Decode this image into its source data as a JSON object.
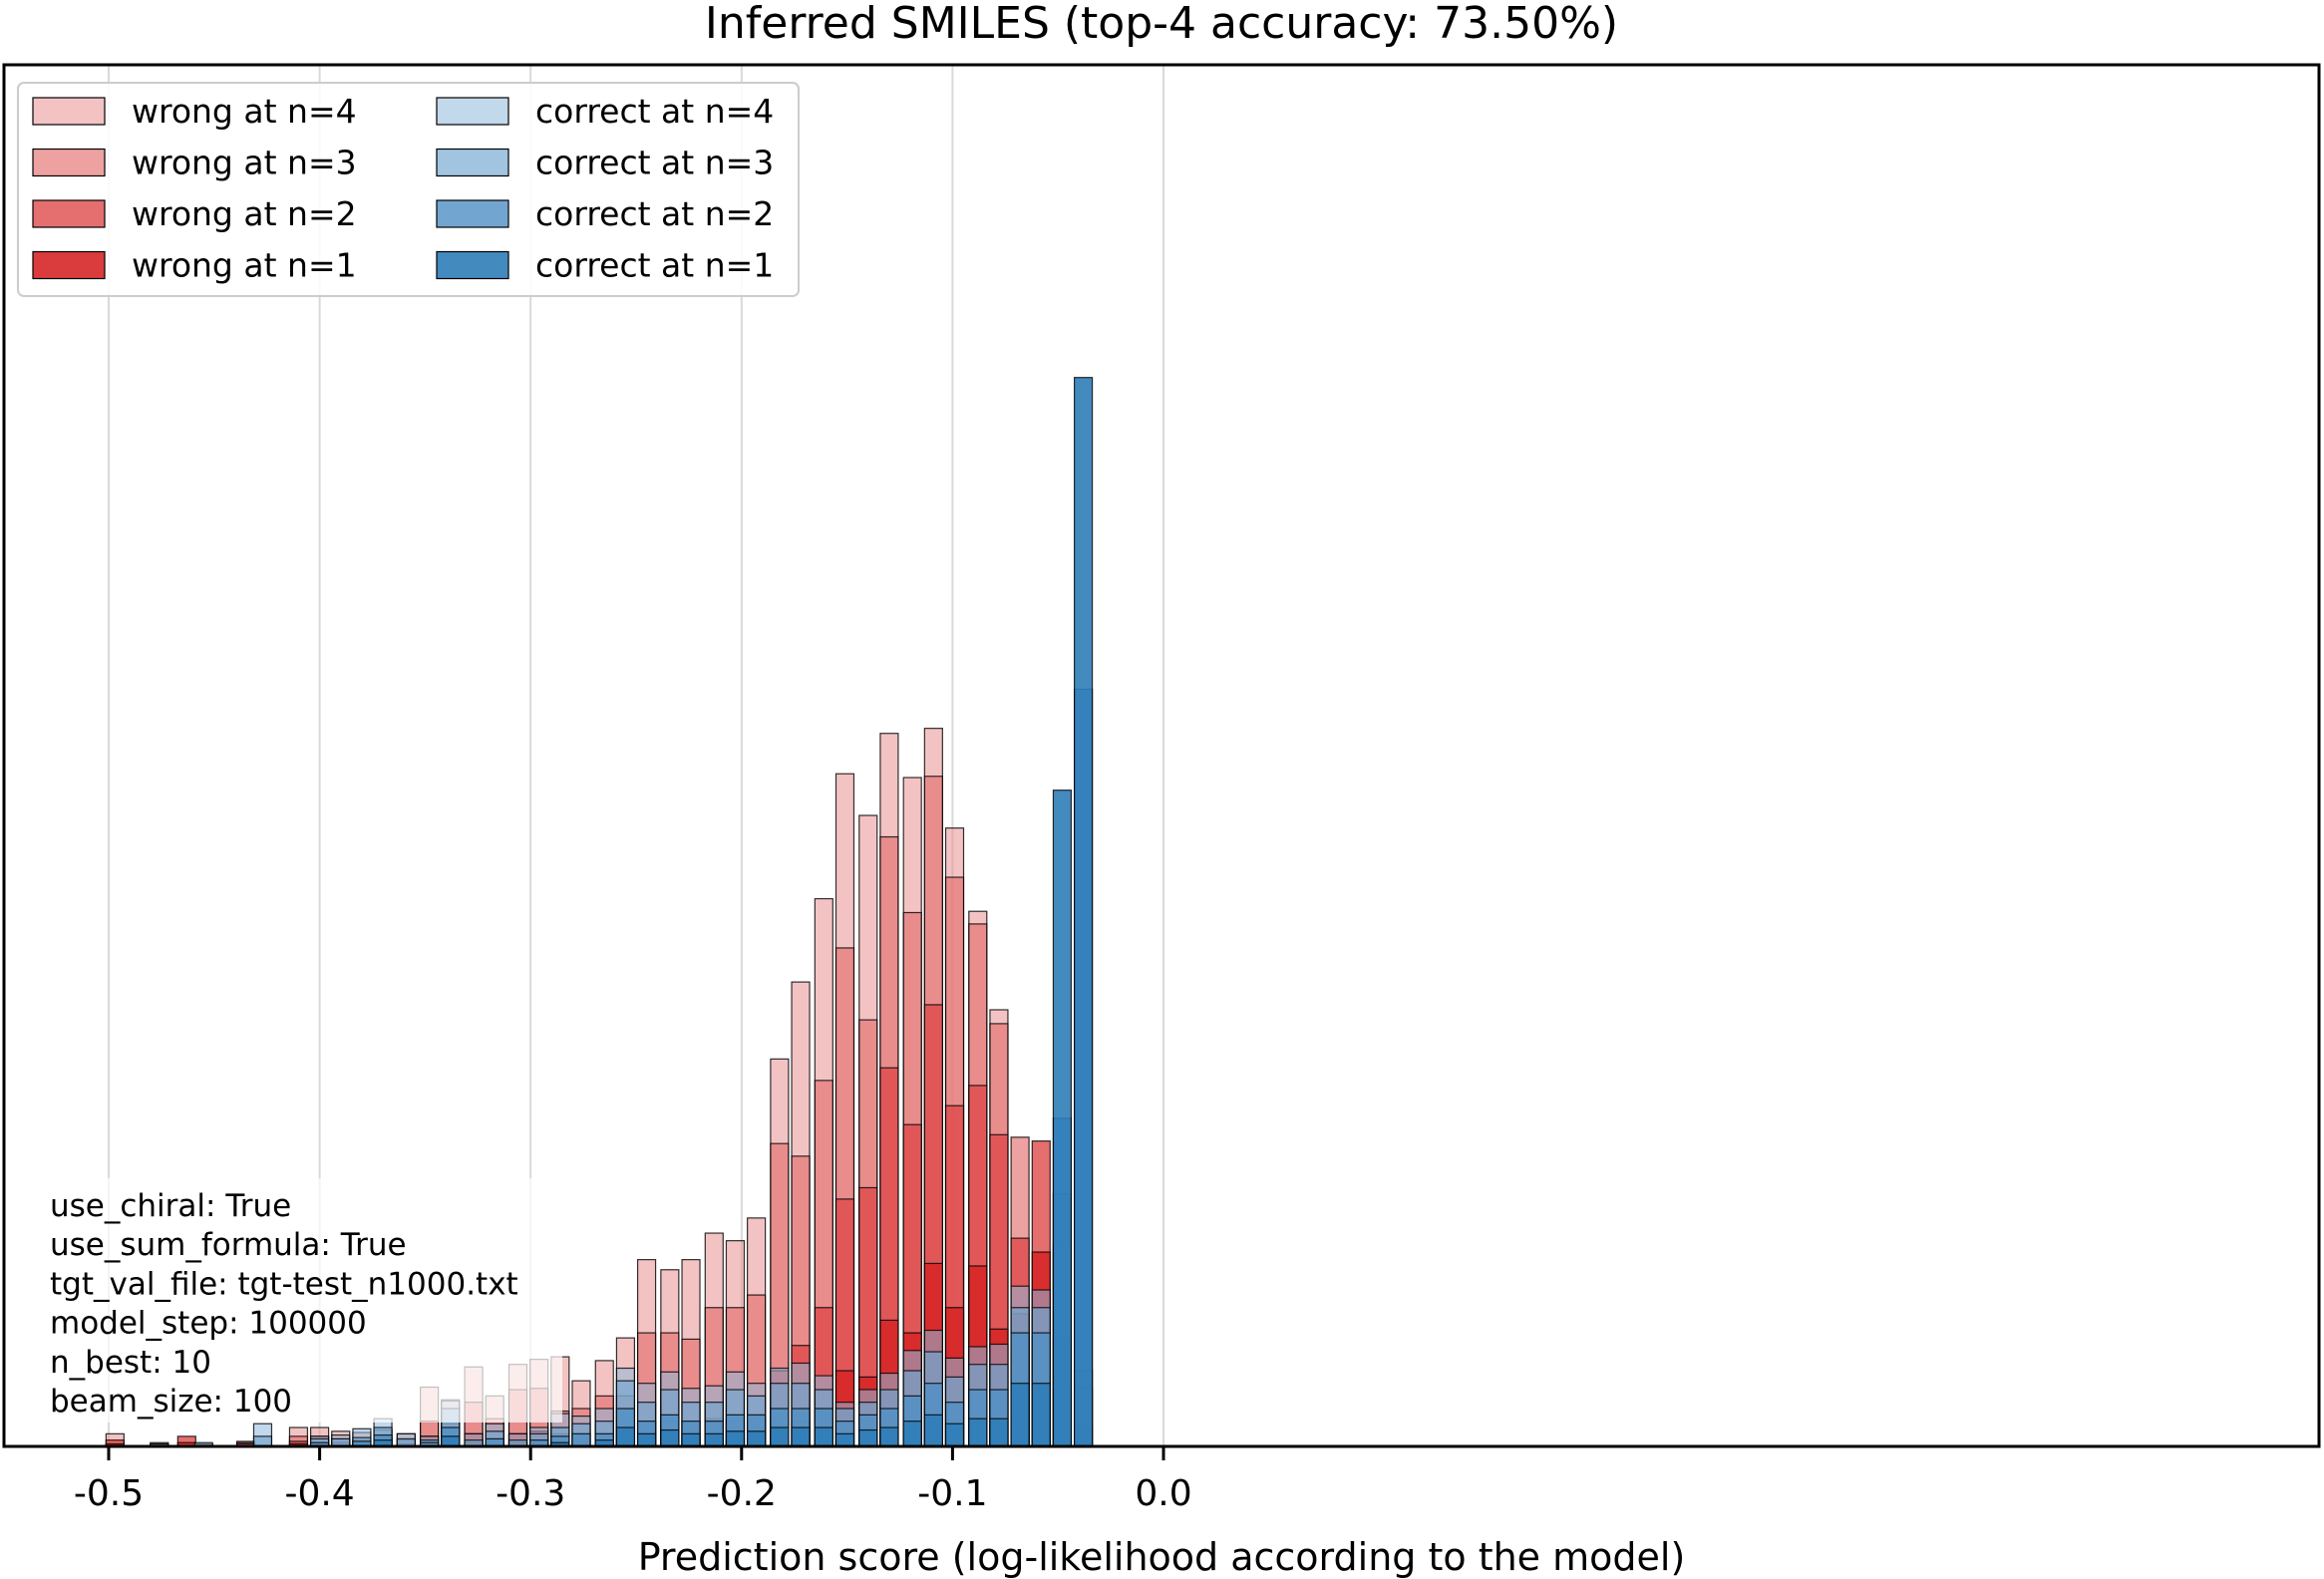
{
  "chart_data": {
    "type": "bar",
    "title": "Inferred SMILES (top-4 accuracy: 73.50%)",
    "xlabel": "Prediction score (log-likelihood according to the model)",
    "ylabel": "",
    "xlim": [
      -0.525,
      0.025
    ],
    "ylim": [
      0,
      100
    ],
    "x_ticks": [
      -0.5,
      -0.4,
      -0.3,
      -0.2,
      -0.1,
      0.0
    ],
    "x_tick_labels": [
      "-0.5",
      "-0.4",
      "-0.3",
      "-0.2",
      "-0.1",
      "0.0"
    ],
    "grid": "vertical",
    "legend_position": "top-left",
    "bar_width": 0.0085,
    "colors": {
      "wrong": [
        "#d62728",
        "#de4a4b",
        "#e46e6f",
        "#ea9192"
      ],
      "correct": [
        "#2f7db8",
        "#4f90c4",
        "#6fa4cf",
        "#8fb8db"
      ],
      "edge": "#000000",
      "grid": "#d9d9d9"
    },
    "annotations": [
      "use_chiral: True",
      "use_sum_formula: True",
      "tgt_val_file: tgt-test_n1000.txt",
      "model_step: 100000",
      "n_best: 10",
      "beam_size: 100"
    ],
    "series": [
      {
        "name": "wrong at n=4",
        "group": "wrong",
        "n": 4,
        "alpha": 0.55,
        "points": [
          [
            -0.497,
            1
          ],
          [
            -0.476,
            0.3
          ],
          [
            -0.455,
            0.2
          ],
          [
            -0.435,
            0.4
          ],
          [
            -0.41,
            1.5
          ],
          [
            -0.4,
            1.5
          ],
          [
            -0.39,
            1.2
          ],
          [
            -0.38,
            1.1
          ],
          [
            -0.37,
            1.3
          ],
          [
            -0.359,
            1.0
          ],
          [
            -0.348,
            4.7
          ],
          [
            -0.338,
            3.7
          ],
          [
            -0.327,
            6.3
          ],
          [
            -0.317,
            4.0
          ],
          [
            -0.306,
            6.5
          ],
          [
            -0.296,
            6.9
          ],
          [
            -0.286,
            7.1
          ],
          [
            -0.276,
            5.2
          ],
          [
            -0.265,
            6.8
          ],
          [
            -0.255,
            8.6
          ],
          [
            -0.245,
            14.8
          ],
          [
            -0.234,
            14.0
          ],
          [
            -0.224,
            14.8
          ],
          [
            -0.213,
            16.9
          ],
          [
            -0.203,
            16.3
          ],
          [
            -0.193,
            18.1
          ],
          [
            -0.182,
            30.7
          ],
          [
            -0.172,
            36.8
          ],
          [
            -0.161,
            43.4
          ],
          [
            -0.151,
            53.3
          ],
          [
            -0.14,
            50.0
          ],
          [
            -0.13,
            56.5
          ],
          [
            -0.119,
            53.0
          ],
          [
            -0.109,
            56.9
          ],
          [
            -0.099,
            49.0
          ],
          [
            -0.088,
            42.4
          ],
          [
            -0.078,
            34.6
          ]
        ]
      },
      {
        "name": "wrong at n=3",
        "group": "wrong",
        "n": 3,
        "alpha": 0.65,
        "points": [
          [
            -0.476,
            0.2
          ],
          [
            -0.455,
            0.1
          ],
          [
            -0.435,
            0.3
          ],
          [
            -0.41,
            0.8
          ],
          [
            -0.4,
            0.8
          ],
          [
            -0.39,
            0.6
          ],
          [
            -0.38,
            0.5
          ],
          [
            -0.37,
            0.7
          ],
          [
            -0.359,
            0.5
          ],
          [
            -0.348,
            2.0
          ],
          [
            -0.338,
            1.8
          ],
          [
            -0.327,
            3.5
          ],
          [
            -0.317,
            2.2
          ],
          [
            -0.306,
            4.5
          ],
          [
            -0.296,
            4.6
          ],
          [
            -0.286,
            2.8
          ],
          [
            -0.276,
            3.0
          ],
          [
            -0.265,
            4.0
          ],
          [
            -0.255,
            4.0
          ],
          [
            -0.245,
            9.0
          ],
          [
            -0.234,
            9.0
          ],
          [
            -0.224,
            8.5
          ],
          [
            -0.213,
            11.0
          ],
          [
            -0.203,
            11.0
          ],
          [
            -0.193,
            12.0
          ],
          [
            -0.182,
            24.0
          ],
          [
            -0.172,
            23.0
          ],
          [
            -0.161,
            29.0
          ],
          [
            -0.151,
            39.5
          ],
          [
            -0.14,
            33.8
          ],
          [
            -0.13,
            48.3
          ],
          [
            -0.119,
            42.3
          ],
          [
            -0.109,
            53.1
          ],
          [
            -0.099,
            45.1
          ],
          [
            -0.088,
            41.4
          ],
          [
            -0.078,
            33.5
          ],
          [
            -0.068,
            24.5
          ]
        ]
      },
      {
        "name": "wrong at n=2",
        "group": "wrong",
        "n": 2,
        "alpha": 0.8,
        "points": [
          [
            -0.497,
            0.5
          ],
          [
            -0.476,
            0.1
          ],
          [
            -0.463,
            0.8
          ],
          [
            -0.435,
            0.2
          ],
          [
            -0.41,
            0.4
          ],
          [
            -0.4,
            0.3
          ],
          [
            -0.39,
            0.3
          ],
          [
            -0.38,
            0.2
          ],
          [
            -0.37,
            0.2
          ],
          [
            -0.359,
            0.2
          ],
          [
            -0.348,
            0.8
          ],
          [
            -0.338,
            0.8
          ],
          [
            -0.327,
            1.0
          ],
          [
            -0.317,
            0.6
          ],
          [
            -0.306,
            1.0
          ],
          [
            -0.296,
            1.2
          ],
          [
            -0.286,
            1.0
          ],
          [
            -0.276,
            1.0
          ],
          [
            -0.265,
            1.0
          ],
          [
            -0.255,
            1.2
          ],
          [
            -0.245,
            2.0
          ],
          [
            -0.234,
            2.0
          ],
          [
            -0.224,
            2.0
          ],
          [
            -0.213,
            2.2
          ],
          [
            -0.203,
            2.0
          ],
          [
            -0.193,
            2.4
          ],
          [
            -0.182,
            6.0
          ],
          [
            -0.172,
            8.0
          ],
          [
            -0.161,
            11.0
          ],
          [
            -0.151,
            19.6
          ],
          [
            -0.14,
            20.5
          ],
          [
            -0.13,
            30.0
          ],
          [
            -0.119,
            25.5
          ],
          [
            -0.109,
            35.0
          ],
          [
            -0.099,
            27.0
          ],
          [
            -0.088,
            28.6
          ],
          [
            -0.078,
            24.7
          ],
          [
            -0.068,
            16.5
          ],
          [
            -0.058,
            24.2
          ],
          [
            -0.048,
            8.5
          ]
        ]
      },
      {
        "name": "wrong at n=1",
        "group": "wrong",
        "n": 1,
        "alpha": 0.9,
        "points": [
          [
            -0.497,
            0.2
          ],
          [
            -0.463,
            0.3
          ],
          [
            -0.41,
            0.2
          ],
          [
            -0.39,
            0.1
          ],
          [
            -0.348,
            0.3
          ],
          [
            -0.327,
            0.3
          ],
          [
            -0.306,
            0.3
          ],
          [
            -0.286,
            0.3
          ],
          [
            -0.265,
            0.3
          ],
          [
            -0.245,
            0.5
          ],
          [
            -0.224,
            0.5
          ],
          [
            -0.203,
            0.5
          ],
          [
            -0.182,
            1.0
          ],
          [
            -0.172,
            2.0
          ],
          [
            -0.161,
            3.0
          ],
          [
            -0.151,
            6.0
          ],
          [
            -0.14,
            5.5
          ],
          [
            -0.13,
            10.0
          ],
          [
            -0.119,
            9.0
          ],
          [
            -0.109,
            14.5
          ],
          [
            -0.099,
            11.0
          ],
          [
            -0.088,
            14.3
          ],
          [
            -0.078,
            9.3
          ],
          [
            -0.068,
            10.5
          ],
          [
            -0.058,
            15.4
          ],
          [
            -0.048,
            4.5
          ],
          [
            -0.038,
            1.6
          ]
        ]
      },
      {
        "name": "correct at n=4",
        "group": "correct",
        "n": 4,
        "alpha": 0.55,
        "points": [
          [
            -0.476,
            0.2
          ],
          [
            -0.455,
            0.3
          ],
          [
            -0.427,
            1.8
          ],
          [
            -0.4,
            0.8
          ],
          [
            -0.39,
            0.9
          ],
          [
            -0.38,
            1.4
          ],
          [
            -0.37,
            2.2
          ],
          [
            -0.359,
            1.0
          ],
          [
            -0.348,
            0.8
          ],
          [
            -0.338,
            3.6
          ],
          [
            -0.327,
            1.0
          ],
          [
            -0.317,
            1.8
          ],
          [
            -0.306,
            1.0
          ],
          [
            -0.296,
            1.5
          ],
          [
            -0.286,
            2.6
          ],
          [
            -0.276,
            2.4
          ],
          [
            -0.265,
            3.0
          ],
          [
            -0.255,
            6.2
          ],
          [
            -0.245,
            5.0
          ],
          [
            -0.234,
            5.9
          ],
          [
            -0.224,
            4.6
          ],
          [
            -0.213,
            4.8
          ],
          [
            -0.203,
            5.9
          ],
          [
            -0.193,
            5.0
          ],
          [
            -0.182,
            6.2
          ],
          [
            -0.172,
            6.6
          ],
          [
            -0.161,
            5.6
          ],
          [
            -0.151,
            3.5
          ],
          [
            -0.14,
            4.5
          ],
          [
            -0.13,
            5.8
          ],
          [
            -0.119,
            7.6
          ],
          [
            -0.109,
            9.2
          ],
          [
            -0.099,
            7.0
          ],
          [
            -0.088,
            7.9
          ],
          [
            -0.078,
            8.1
          ],
          [
            -0.068,
            12.7
          ],
          [
            -0.058,
            12.4
          ],
          [
            -0.048,
            16.0
          ],
          [
            -0.038,
            4.6
          ]
        ]
      },
      {
        "name": "correct at n=3",
        "group": "correct",
        "n": 3,
        "alpha": 0.65,
        "points": [
          [
            -0.427,
            0.8
          ],
          [
            -0.4,
            0.6
          ],
          [
            -0.39,
            0.6
          ],
          [
            -0.38,
            0.7
          ],
          [
            -0.37,
            1.5
          ],
          [
            -0.359,
            0.6
          ],
          [
            -0.348,
            0.5
          ],
          [
            -0.338,
            3.0
          ],
          [
            -0.327,
            0.5
          ],
          [
            -0.317,
            1.2
          ],
          [
            -0.306,
            0.5
          ],
          [
            -0.296,
            1.0
          ],
          [
            -0.286,
            1.5
          ],
          [
            -0.276,
            1.8
          ],
          [
            -0.265,
            2.0
          ],
          [
            -0.255,
            5.2
          ],
          [
            -0.245,
            3.5
          ],
          [
            -0.234,
            4.5
          ],
          [
            -0.224,
            3.5
          ],
          [
            -0.213,
            3.5
          ],
          [
            -0.203,
            4.5
          ],
          [
            -0.193,
            4.0
          ],
          [
            -0.182,
            5.0
          ],
          [
            -0.172,
            5.0
          ],
          [
            -0.161,
            4.5
          ],
          [
            -0.151,
            3.0
          ],
          [
            -0.14,
            3.5
          ],
          [
            -0.13,
            4.5
          ],
          [
            -0.119,
            6.0
          ],
          [
            -0.109,
            7.5
          ],
          [
            -0.099,
            5.5
          ],
          [
            -0.088,
            6.5
          ],
          [
            -0.078,
            6.5
          ],
          [
            -0.068,
            11.0
          ],
          [
            -0.058,
            11.0
          ],
          [
            -0.048,
            20.0
          ],
          [
            -0.038,
            6.0
          ]
        ]
      },
      {
        "name": "correct at n=2",
        "group": "correct",
        "n": 2,
        "alpha": 0.8,
        "points": [
          [
            -0.4,
            0.3
          ],
          [
            -0.38,
            0.4
          ],
          [
            -0.37,
            0.9
          ],
          [
            -0.348,
            0.3
          ],
          [
            -0.338,
            1.5
          ],
          [
            -0.317,
            0.6
          ],
          [
            -0.296,
            0.5
          ],
          [
            -0.286,
            0.8
          ],
          [
            -0.276,
            1.0
          ],
          [
            -0.265,
            1.0
          ],
          [
            -0.255,
            3.0
          ],
          [
            -0.245,
            2.0
          ],
          [
            -0.234,
            2.5
          ],
          [
            -0.224,
            2.0
          ],
          [
            -0.213,
            2.0
          ],
          [
            -0.203,
            2.5
          ],
          [
            -0.193,
            2.5
          ],
          [
            -0.182,
            3.0
          ],
          [
            -0.172,
            3.0
          ],
          [
            -0.161,
            3.0
          ],
          [
            -0.151,
            2.0
          ],
          [
            -0.14,
            2.5
          ],
          [
            -0.13,
            3.0
          ],
          [
            -0.119,
            4.0
          ],
          [
            -0.109,
            5.0
          ],
          [
            -0.099,
            3.5
          ],
          [
            -0.088,
            4.5
          ],
          [
            -0.078,
            4.5
          ],
          [
            -0.068,
            9.0
          ],
          [
            -0.058,
            9.0
          ],
          [
            -0.048,
            26.0
          ],
          [
            -0.038,
            60.0
          ]
        ]
      },
      {
        "name": "correct at n=1",
        "group": "correct",
        "n": 1,
        "alpha": 0.9,
        "points": [
          [
            -0.37,
            0.5
          ],
          [
            -0.338,
            0.8
          ],
          [
            -0.286,
            0.3
          ],
          [
            -0.265,
            0.5
          ],
          [
            -0.255,
            1.5
          ],
          [
            -0.245,
            1.0
          ],
          [
            -0.234,
            1.3
          ],
          [
            -0.224,
            1.0
          ],
          [
            -0.213,
            1.0
          ],
          [
            -0.203,
            1.2
          ],
          [
            -0.193,
            1.2
          ],
          [
            -0.182,
            1.5
          ],
          [
            -0.172,
            1.5
          ],
          [
            -0.161,
            1.5
          ],
          [
            -0.151,
            1.0
          ],
          [
            -0.14,
            1.3
          ],
          [
            -0.13,
            1.5
          ],
          [
            -0.119,
            2.0
          ],
          [
            -0.109,
            2.5
          ],
          [
            -0.099,
            1.8
          ],
          [
            -0.088,
            2.2
          ],
          [
            -0.078,
            2.2
          ],
          [
            -0.068,
            5.0
          ],
          [
            -0.058,
            5.0
          ],
          [
            -0.048,
            52.0
          ],
          [
            -0.038,
            84.7
          ]
        ]
      }
    ]
  }
}
